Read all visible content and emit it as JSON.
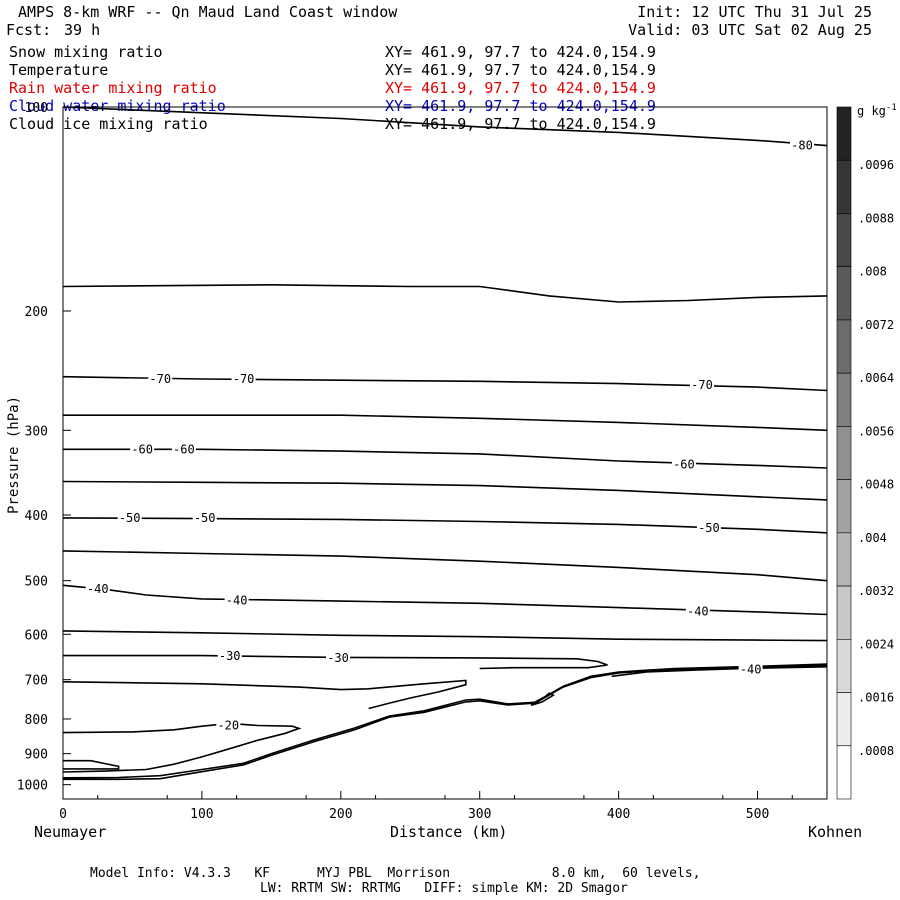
{
  "header": {
    "title": "AMPS 8-km WRF -- Qn Maud Land Coast window",
    "init": "Init: 12 UTC Thu 31 Jul 25",
    "fcst_label": "Fcst:",
    "fcst_value": "39 h",
    "valid": "Valid: 03 UTC Sat 02 Aug 25"
  },
  "fields": [
    {
      "name": "Snow mixing ratio",
      "xy": "XY= 461.9, 97.7 to 424.0,154.9",
      "color": "#000000"
    },
    {
      "name": "Temperature",
      "xy": "XY= 461.9, 97.7 to 424.0,154.9",
      "color": "#000000"
    },
    {
      "name": "Rain water mixing ratio",
      "xy": "XY= 461.9, 97.7 to 424.0,154.9",
      "color": "#e00000"
    },
    {
      "name": "Cloud water mixing ratio",
      "xy": "XY= 461.9, 97.7 to 424.0,154.9",
      "color": "#0000c0"
    },
    {
      "name": "Cloud ice mixing ratio",
      "xy": "XY= 461.9, 97.7 to 424.0,154.9",
      "color": "#000000"
    }
  ],
  "chart_data": {
    "type": "line",
    "subtype": "vertical cross-section contour plot",
    "xlabel": "Distance (km)",
    "ylabel": "Pressure (hPa)",
    "xlim": [
      0,
      550
    ],
    "ylim": [
      1050,
      100
    ],
    "y_scale": "log",
    "xticks": [
      0,
      100,
      200,
      300,
      400,
      500
    ],
    "yticks": [
      100,
      200,
      300,
      400,
      500,
      600,
      700,
      800,
      900,
      1000
    ],
    "start_label": "Neumayer",
    "end_label": "Kohnen",
    "colorbar": {
      "unit": "g kg",
      "unit_sup": "-1",
      "ticks": [
        ".0008",
        ".0016",
        ".0024",
        ".0032",
        ".004",
        ".0048",
        ".0056",
        ".0064",
        ".0072",
        ".008",
        ".0088",
        ".0096"
      ]
    },
    "contours": [
      {
        "label": "-80",
        "label_points": [
          [
            532,
            114
          ]
        ],
        "points": [
          [
            0,
            100
          ],
          [
            200,
            104
          ],
          [
            300,
            107
          ],
          [
            400,
            109
          ],
          [
            500,
            112
          ],
          [
            550,
            114
          ]
        ]
      },
      {
        "points": [
          [
            0,
            184
          ],
          [
            150,
            183
          ],
          [
            250,
            184
          ],
          [
            300,
            184
          ],
          [
            350,
            190
          ],
          [
            400,
            194
          ],
          [
            450,
            193
          ],
          [
            500,
            191
          ],
          [
            550,
            190
          ]
        ]
      },
      {
        "label": "-70",
        "label_points": [
          [
            70,
            252
          ],
          [
            130,
            252
          ],
          [
            460,
            257
          ]
        ],
        "points": [
          [
            0,
            250
          ],
          [
            100,
            252
          ],
          [
            200,
            253
          ],
          [
            300,
            254
          ],
          [
            400,
            256
          ],
          [
            500,
            259
          ],
          [
            550,
            262
          ]
        ]
      },
      {
        "points": [
          [
            0,
            285
          ],
          [
            100,
            285
          ],
          [
            200,
            285
          ],
          [
            300,
            288
          ],
          [
            400,
            292
          ],
          [
            500,
            297
          ],
          [
            550,
            300
          ]
        ]
      },
      {
        "label": "-60",
        "label_points": [
          [
            57,
            320
          ],
          [
            87,
            320
          ],
          [
            447,
            337
          ]
        ],
        "points": [
          [
            0,
            320
          ],
          [
            100,
            320
          ],
          [
            200,
            322
          ],
          [
            300,
            325
          ],
          [
            400,
            333
          ],
          [
            500,
            338
          ],
          [
            550,
            341
          ]
        ]
      },
      {
        "points": [
          [
            0,
            357
          ],
          [
            100,
            358
          ],
          [
            200,
            359
          ],
          [
            300,
            362
          ],
          [
            400,
            368
          ],
          [
            500,
            376
          ],
          [
            550,
            380
          ]
        ]
      },
      {
        "label": "-50",
        "label_points": [
          [
            48,
            404
          ],
          [
            102,
            404
          ],
          [
            465,
            418
          ]
        ],
        "points": [
          [
            0,
            404
          ],
          [
            100,
            405
          ],
          [
            200,
            406
          ],
          [
            300,
            409
          ],
          [
            400,
            413
          ],
          [
            500,
            420
          ],
          [
            550,
            425
          ]
        ]
      },
      {
        "points": [
          [
            0,
            452
          ],
          [
            100,
            456
          ],
          [
            200,
            460
          ],
          [
            300,
            468
          ],
          [
            400,
            478
          ],
          [
            500,
            490
          ],
          [
            550,
            500
          ]
        ]
      },
      {
        "label": "-40",
        "label_points": [
          [
            25,
            514
          ],
          [
            125,
            535
          ],
          [
            457,
            555
          ]
        ],
        "points": [
          [
            0,
            508
          ],
          [
            30,
            515
          ],
          [
            60,
            525
          ],
          [
            100,
            532
          ],
          [
            200,
            536
          ],
          [
            300,
            540
          ],
          [
            400,
            548
          ],
          [
            500,
            556
          ],
          [
            550,
            561
          ]
        ]
      },
      {
        "points": [
          [
            0,
            593
          ],
          [
            100,
            597
          ],
          [
            200,
            602
          ],
          [
            300,
            605
          ],
          [
            400,
            610
          ],
          [
            500,
            612
          ],
          [
            550,
            613
          ]
        ]
      },
      {
        "label": "-30",
        "label_points": [
          [
            120,
            646
          ],
          [
            198,
            650
          ]
        ],
        "points": [
          [
            0,
            645
          ],
          [
            100,
            645
          ],
          [
            200,
            649
          ],
          [
            300,
            650
          ],
          [
            370,
            652
          ],
          [
            385,
            658
          ],
          [
            392,
            666
          ],
          [
            378,
            672
          ],
          [
            350,
            672
          ],
          [
            325,
            672
          ],
          [
            300,
            674
          ]
        ]
      },
      {
        "points": [
          [
            0,
            705
          ],
          [
            100,
            710
          ],
          [
            170,
            718
          ],
          [
            200,
            724
          ],
          [
            220,
            722
          ],
          [
            260,
            710
          ],
          [
            290,
            702
          ],
          [
            290,
            712
          ],
          [
            270,
            730
          ],
          [
            250,
            745
          ],
          [
            235,
            758
          ],
          [
            220,
            772
          ]
        ]
      },
      {
        "label": "-40",
        "label_points": [
          [
            495,
            676
          ]
        ],
        "points": [
          [
            395,
            692
          ],
          [
            420,
            682
          ],
          [
            460,
            677
          ],
          [
            500,
            673
          ],
          [
            550,
            670
          ]
        ]
      },
      {
        "points": [
          [
            337,
            764
          ],
          [
            340,
            755
          ],
          [
            347,
            742
          ],
          [
            350,
            733
          ],
          [
            353,
            738
          ],
          [
            345,
            755
          ],
          [
            337,
            764
          ]
        ]
      },
      {
        "points": [
          [
            0,
            838
          ],
          [
            50,
            836
          ],
          [
            80,
            830
          ],
          [
            100,
            820
          ],
          [
            120,
            812
          ],
          [
            140,
            818
          ],
          [
            165,
            820
          ],
          [
            170,
            826
          ],
          [
            160,
            840
          ],
          [
            140,
            860
          ],
          [
            120,
            885
          ],
          [
            100,
            910
          ],
          [
            80,
            933
          ],
          [
            60,
            950
          ],
          [
            30,
            955
          ],
          [
            0,
            958
          ]
        ]
      },
      {
        "label": "-20",
        "label_points": [
          [
            119,
            818
          ]
        ]
      },
      {
        "points": [
          [
            0,
            922
          ],
          [
            20,
            922
          ],
          [
            40,
            940
          ],
          [
            40,
            948
          ],
          [
            20,
            948
          ],
          [
            0,
            948
          ]
        ]
      },
      {
        "points": [
          [
            0,
            982
          ],
          [
            40,
            982
          ],
          [
            70,
            980
          ],
          [
            100,
            957
          ],
          [
            130,
            935
          ],
          [
            150,
            905
          ],
          [
            180,
            865
          ],
          [
            210,
            830
          ],
          [
            235,
            795
          ],
          [
            260,
            782
          ],
          [
            290,
            755
          ],
          [
            300,
            752
          ],
          [
            320,
            763
          ],
          [
            340,
            758
          ],
          [
            360,
            718
          ],
          [
            380,
            695
          ],
          [
            400,
            684
          ],
          [
            440,
            676
          ],
          [
            500,
            671
          ],
          [
            550,
            667
          ]
        ]
      },
      {
        "points": [
          [
            0,
            977
          ],
          [
            40,
            976
          ],
          [
            70,
            970
          ],
          [
            100,
            950
          ],
          [
            130,
            930
          ],
          [
            150,
            900
          ],
          [
            180,
            860
          ],
          [
            210,
            825
          ],
          [
            235,
            792
          ],
          [
            260,
            778
          ],
          [
            290,
            750
          ],
          [
            300,
            748
          ],
          [
            320,
            760
          ],
          [
            340,
            756
          ],
          [
            360,
            716
          ],
          [
            380,
            692
          ],
          [
            400,
            682
          ],
          [
            440,
            674
          ],
          [
            500,
            669
          ],
          [
            550,
            664
          ]
        ]
      }
    ]
  },
  "footer": {
    "line1": "Model Info: V4.3.3   KF      MYJ PBL  Morrison             8.0 km,  60 levels,",
    "line2": "LW: RRTM SW: RRTMG   DIFF: simple KM: 2D Smagor"
  }
}
